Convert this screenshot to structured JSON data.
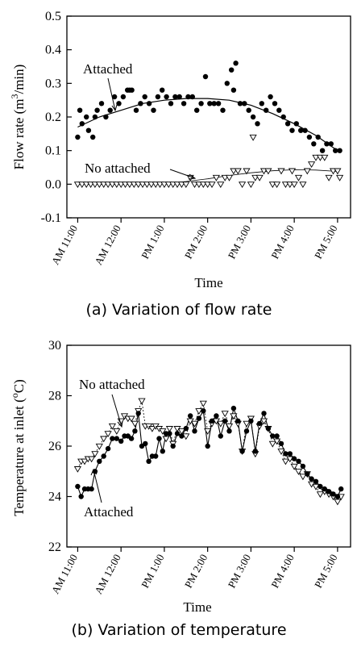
{
  "chart_data": [
    {
      "type": "scatter",
      "panel": "a",
      "caption": "(a) Variation of flow rate",
      "xlabel": "Time",
      "ylabel": "Flow rate (m3/min)",
      "ylabel_parts": {
        "pre": "Flow rate (m",
        "sup": "3",
        "post": "/min)"
      },
      "xlim": [
        10.75,
        17.3
      ],
      "ylim": [
        -0.1,
        0.5
      ],
      "yticks": [
        -0.1,
        0.0,
        0.1,
        0.2,
        0.3,
        0.4,
        0.5
      ],
      "ytick_labels": [
        "-0.1",
        "0.0",
        "0.1",
        "0.2",
        "0.3",
        "0.4",
        "0.5"
      ],
      "xticks": [
        11,
        12,
        13,
        14,
        15,
        16,
        17
      ],
      "xtick_labels": [
        "AM 11:00",
        "AM 12:00",
        "PM 1:00",
        "PM 2:00",
        "PM 3:00",
        "PM 4:00",
        "PM 5:00"
      ],
      "grid": false,
      "annotations": [
        "Attached",
        "No attached"
      ],
      "series": [
        {
          "label": "Attached",
          "marker": "filled-circle",
          "x": [
            11.0,
            11.05,
            11.1,
            11.2,
            11.25,
            11.35,
            11.4,
            11.45,
            11.55,
            11.65,
            11.75,
            11.85,
            11.95,
            12.05,
            12.15,
            12.2,
            12.25,
            12.35,
            12.45,
            12.55,
            12.65,
            12.75,
            12.85,
            12.95,
            13.05,
            13.15,
            13.25,
            13.35,
            13.45,
            13.55,
            13.65,
            13.75,
            13.85,
            13.95,
            14.05,
            14.15,
            14.25,
            14.35,
            14.45,
            14.55,
            14.6,
            14.65,
            14.75,
            14.85,
            14.95,
            15.05,
            15.15,
            15.25,
            15.35,
            15.45,
            15.55,
            15.65,
            15.75,
            15.85,
            15.95,
            16.05,
            16.15,
            16.25,
            16.35,
            16.45,
            16.55,
            16.65,
            16.75,
            16.85,
            16.95,
            17.05
          ],
          "y": [
            0.14,
            0.22,
            0.18,
            0.2,
            0.16,
            0.14,
            0.2,
            0.22,
            0.24,
            0.2,
            0.22,
            0.26,
            0.24,
            0.26,
            0.28,
            0.28,
            0.28,
            0.22,
            0.24,
            0.26,
            0.24,
            0.22,
            0.26,
            0.28,
            0.26,
            0.24,
            0.26,
            0.26,
            0.24,
            0.26,
            0.26,
            0.22,
            0.24,
            0.32,
            0.24,
            0.24,
            0.24,
            0.22,
            0.3,
            0.34,
            0.28,
            0.36,
            0.24,
            0.24,
            0.22,
            0.2,
            0.18,
            0.24,
            0.22,
            0.26,
            0.24,
            0.22,
            0.2,
            0.18,
            0.16,
            0.18,
            0.16,
            0.16,
            0.14,
            0.12,
            0.14,
            0.1,
            0.12,
            0.12,
            0.1,
            0.1
          ],
          "fit_curve": {
            "x": [
              11.0,
              11.5,
              12.0,
              12.5,
              13.0,
              13.5,
              14.0,
              14.5,
              15.0,
              15.5,
              16.0,
              16.5,
              17.0
            ],
            "y": [
              0.17,
              0.2,
              0.22,
              0.24,
              0.25,
              0.255,
              0.255,
              0.25,
              0.235,
              0.21,
              0.18,
              0.145,
              0.1
            ]
          }
        },
        {
          "label": "No attached",
          "marker": "open-triangle-down",
          "x": [
            11.0,
            11.1,
            11.2,
            11.3,
            11.4,
            11.5,
            11.6,
            11.7,
            11.8,
            11.9,
            12.0,
            12.1,
            12.2,
            12.3,
            12.4,
            12.5,
            12.6,
            12.7,
            12.8,
            12.9,
            13.0,
            13.1,
            13.2,
            13.3,
            13.4,
            13.5,
            13.6,
            13.7,
            13.8,
            13.9,
            14.0,
            14.1,
            14.2,
            14.3,
            14.4,
            14.5,
            14.6,
            14.7,
            14.8,
            14.9,
            15.0,
            15.05,
            15.1,
            15.2,
            15.3,
            15.4,
            15.5,
            15.6,
            15.7,
            15.8,
            15.9,
            15.95,
            16.0,
            16.1,
            16.2,
            16.3,
            16.4,
            16.5,
            16.6,
            16.7,
            16.8,
            16.9,
            17.0,
            17.05
          ],
          "y": [
            0.0,
            0.0,
            0.0,
            0.0,
            0.0,
            0.0,
            0.0,
            0.0,
            0.0,
            0.0,
            0.0,
            0.0,
            0.0,
            0.0,
            0.0,
            0.0,
            0.0,
            0.0,
            0.0,
            0.0,
            0.0,
            0.0,
            0.0,
            0.0,
            0.0,
            0.0,
            0.02,
            0.0,
            0.0,
            0.0,
            0.0,
            0.0,
            0.02,
            0.0,
            0.02,
            0.02,
            0.04,
            0.04,
            0.0,
            0.04,
            0.0,
            0.14,
            0.02,
            0.02,
            0.04,
            0.04,
            0.0,
            0.0,
            0.04,
            0.0,
            0.0,
            0.04,
            0.0,
            0.02,
            0.0,
            0.04,
            0.06,
            0.08,
            0.08,
            0.08,
            0.02,
            0.04,
            0.04,
            0.02
          ],
          "fit_curve": {
            "x": [
              11.0,
              11.5,
              12.0,
              12.5,
              13.0,
              13.5,
              14.0,
              14.5,
              15.0,
              15.5,
              16.0,
              16.5,
              17.0
            ],
            "y": [
              0.0,
              0.0,
              0.0,
              0.0,
              0.002,
              0.008,
              0.016,
              0.026,
              0.034,
              0.04,
              0.043,
              0.042,
              0.038
            ]
          }
        }
      ]
    },
    {
      "type": "line",
      "panel": "b",
      "caption": "(b) Variation of temperature",
      "xlabel": "Time",
      "ylabel": "Temperature at inlet (oC)",
      "ylabel_parts": {
        "pre": "Temperature at inlet (",
        "sup": "o",
        "post": "C)"
      },
      "xlim": [
        10.75,
        17.3
      ],
      "ylim": [
        22,
        30
      ],
      "yticks": [
        22,
        24,
        26,
        28,
        30
      ],
      "ytick_labels": [
        "22",
        "24",
        "26",
        "28",
        "30"
      ],
      "xticks": [
        11,
        12,
        13,
        14,
        15,
        16,
        17
      ],
      "xtick_labels": [
        "AM 11:00",
        "AM 12:00",
        "PM 1:00",
        "PM 2:00",
        "PM 3:00",
        "PM 4:00",
        "PM 5:00"
      ],
      "grid": false,
      "annotations": [
        "No attached",
        "Attached"
      ],
      "series": [
        {
          "label": "No attached",
          "marker": "open-triangle-down",
          "x": [
            11.0,
            11.08,
            11.16,
            11.24,
            11.32,
            11.4,
            11.5,
            11.6,
            11.7,
            11.8,
            11.9,
            12.0,
            12.08,
            12.16,
            12.24,
            12.32,
            12.4,
            12.48,
            12.56,
            12.64,
            12.72,
            12.8,
            12.88,
            12.96,
            13.04,
            13.12,
            13.2,
            13.3,
            13.4,
            13.5,
            13.6,
            13.7,
            13.8,
            13.9,
            14.0,
            14.1,
            14.2,
            14.3,
            14.4,
            14.5,
            14.6,
            14.7,
            14.8,
            14.9,
            15.0,
            15.1,
            15.2,
            15.3,
            15.4,
            15.5,
            15.6,
            15.7,
            15.8,
            15.9,
            16.0,
            16.1,
            16.2,
            16.3,
            16.4,
            16.5,
            16.6,
            16.7,
            16.8,
            16.9,
            17.0,
            17.08
          ],
          "y": [
            25.1,
            25.4,
            25.4,
            25.5,
            25.5,
            25.7,
            26.0,
            26.3,
            26.5,
            26.8,
            26.6,
            27.0,
            27.2,
            27.1,
            27.1,
            26.9,
            27.4,
            27.8,
            26.8,
            26.8,
            26.7,
            26.8,
            26.7,
            26.6,
            26.3,
            26.7,
            26.1,
            26.7,
            26.6,
            26.4,
            27.0,
            26.9,
            27.4,
            27.7,
            26.6,
            26.9,
            27.0,
            26.9,
            27.3,
            26.8,
            27.2,
            26.9,
            25.8,
            26.9,
            27.1,
            25.7,
            26.8,
            27.0,
            26.7,
            26.1,
            26.2,
            25.8,
            25.4,
            25.5,
            25.2,
            25.0,
            24.8,
            24.9,
            24.5,
            24.4,
            24.1,
            24.2,
            24.1,
            24.0,
            23.8,
            24.0
          ]
        },
        {
          "label": "Attached",
          "marker": "filled-circle",
          "x": [
            11.0,
            11.08,
            11.16,
            11.24,
            11.32,
            11.4,
            11.5,
            11.6,
            11.7,
            11.8,
            11.9,
            12.0,
            12.08,
            12.16,
            12.24,
            12.32,
            12.4,
            12.48,
            12.56,
            12.64,
            12.72,
            12.8,
            12.88,
            12.96,
            13.04,
            13.12,
            13.2,
            13.3,
            13.4,
            13.5,
            13.6,
            13.7,
            13.8,
            13.9,
            14.0,
            14.1,
            14.2,
            14.3,
            14.4,
            14.5,
            14.6,
            14.7,
            14.8,
            14.9,
            15.0,
            15.1,
            15.2,
            15.3,
            15.4,
            15.5,
            15.6,
            15.7,
            15.8,
            15.9,
            16.0,
            16.1,
            16.2,
            16.3,
            16.4,
            16.5,
            16.6,
            16.7,
            16.8,
            16.9,
            17.0,
            17.08
          ],
          "y": [
            24.4,
            24.0,
            24.3,
            24.3,
            24.3,
            25.0,
            25.4,
            25.6,
            25.9,
            26.3,
            26.3,
            26.2,
            26.4,
            26.4,
            26.3,
            26.6,
            27.3,
            26.0,
            26.1,
            25.4,
            25.6,
            25.6,
            26.3,
            25.8,
            26.5,
            26.5,
            26.0,
            26.5,
            26.4,
            26.7,
            27.2,
            26.6,
            27.1,
            27.4,
            26.0,
            27.0,
            27.2,
            26.4,
            27.0,
            26.6,
            27.5,
            27.0,
            25.8,
            26.6,
            27.0,
            25.8,
            26.9,
            27.3,
            26.7,
            26.4,
            26.4,
            26.1,
            25.7,
            25.7,
            25.5,
            25.4,
            25.2,
            24.9,
            24.7,
            24.6,
            24.4,
            24.3,
            24.2,
            24.1,
            24.0,
            24.3
          ]
        }
      ]
    }
  ]
}
